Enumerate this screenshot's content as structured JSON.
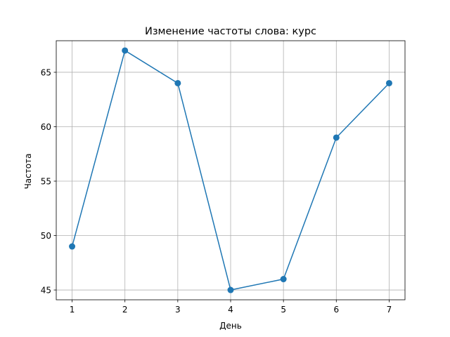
{
  "chart_data": {
    "type": "line",
    "title": "Изменение частоты слова: курс",
    "xlabel": "День",
    "ylabel": "Частота",
    "x": [
      1,
      2,
      3,
      4,
      5,
      6,
      7
    ],
    "series": [
      {
        "values": [
          49,
          67,
          64,
          45,
          46,
          59,
          64
        ],
        "color": "#1f77b4",
        "marker": "circle"
      }
    ],
    "xticks": [
      1,
      2,
      3,
      4,
      5,
      6,
      7
    ],
    "yticks": [
      45,
      50,
      55,
      60,
      65
    ],
    "xlim": [
      0.7,
      7.3
    ],
    "ylim": [
      44.1,
      67.9
    ],
    "grid": true
  }
}
